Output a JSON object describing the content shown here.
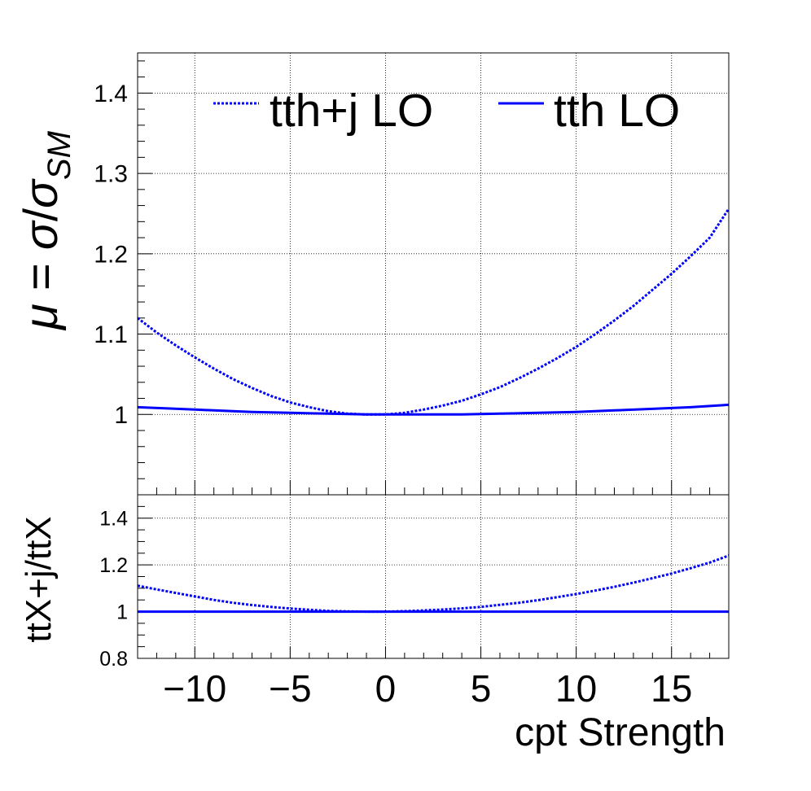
{
  "chart_data": [
    {
      "type": "line",
      "panel": "main",
      "ylabel": {
        "mu": "μ",
        "equals": " = ",
        "sigma": "σ",
        "slash": "/",
        "sigma2": "σ",
        "sub": "SM"
      },
      "xlim": [
        -13,
        18
      ],
      "ylim": [
        0.9,
        1.45
      ],
      "xticks": [
        -10,
        -5,
        0,
        5,
        10,
        15
      ],
      "yticks": [
        1,
        1.1,
        1.2,
        1.3,
        1.4
      ],
      "ytick_labels": [
        "1",
        "1.1",
        "1.2",
        "1.3",
        "1.4"
      ],
      "grid": true,
      "legend_position": "top",
      "series": [
        {
          "name": "tth+j LO",
          "style": "dotted",
          "color": "#0000ff",
          "x": [
            -13,
            -12,
            -11,
            -10,
            -9,
            -8,
            -7,
            -6,
            -5,
            -4,
            -3,
            -2,
            -1,
            0,
            1,
            2,
            3,
            4,
            5,
            6,
            7,
            8,
            9,
            10,
            11,
            12,
            13,
            14,
            15,
            16,
            17,
            18
          ],
          "y": [
            1.12,
            1.102,
            1.086,
            1.071,
            1.057,
            1.044,
            1.033,
            1.023,
            1.015,
            1.009,
            1.004,
            1.001,
            1.0,
            1.0,
            1.002,
            1.006,
            1.011,
            1.017,
            1.025,
            1.034,
            1.045,
            1.057,
            1.07,
            1.084,
            1.1,
            1.117,
            1.135,
            1.155,
            1.175,
            1.197,
            1.22,
            1.256
          ]
        },
        {
          "name": "tth LO",
          "style": "solid",
          "color": "#0000ff",
          "x": [
            -13,
            -10,
            -7,
            -5,
            -3,
            -1,
            0,
            2,
            4,
            6,
            8,
            10,
            12,
            14,
            16,
            18
          ],
          "y": [
            1.009,
            1.006,
            1.003,
            1.002,
            1.001,
            1.0,
            1.0,
            1.0,
            1.0,
            1.001,
            1.002,
            1.003,
            1.005,
            1.007,
            1.009,
            1.012
          ]
        }
      ]
    },
    {
      "type": "line",
      "panel": "ratio",
      "ylabel": "ttX+j/ttX",
      "xlabel": "cpt Strength",
      "xlim": [
        -13,
        18
      ],
      "ylim": [
        0.8,
        1.5
      ],
      "xticks": [
        -10,
        -5,
        0,
        5,
        10,
        15
      ],
      "xtick_labels": [
        "−10",
        "−5",
        "0",
        "5",
        "10",
        "15"
      ],
      "yticks": [
        0.8,
        1,
        1.2,
        1.4
      ],
      "ytick_labels": [
        "0.8",
        "1",
        "1.2",
        "1.4"
      ],
      "grid": true,
      "series": [
        {
          "style": "dotted",
          "color": "#0000ff",
          "x": [
            -13,
            -12,
            -11,
            -10,
            -9,
            -8,
            -7,
            -6,
            -5,
            -4,
            -3,
            -2,
            -1,
            0,
            1,
            2,
            3,
            4,
            5,
            6,
            7,
            8,
            9,
            10,
            11,
            12,
            13,
            14,
            15,
            16,
            17,
            18
          ],
          "y": [
            1.111,
            1.095,
            1.08,
            1.065,
            1.05,
            1.038,
            1.028,
            1.02,
            1.013,
            1.008,
            1.003,
            1.001,
            1.0,
            1.0,
            1.002,
            1.005,
            1.009,
            1.014,
            1.02,
            1.029,
            1.038,
            1.049,
            1.062,
            1.075,
            1.09,
            1.106,
            1.124,
            1.143,
            1.163,
            1.186,
            1.21,
            1.24
          ]
        },
        {
          "style": "solid",
          "color": "#0000ff",
          "x": [
            -13,
            18
          ],
          "y": [
            1.0,
            1.0
          ]
        }
      ]
    }
  ]
}
